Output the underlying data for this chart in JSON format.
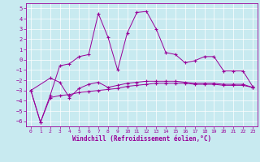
{
  "xlabel": "Windchill (Refroidissement éolien,°C)",
  "background_color": "#c8eaf0",
  "line_color": "#990099",
  "xlim": [
    -0.5,
    23.5
  ],
  "ylim": [
    -6.5,
    5.5
  ],
  "yticks": [
    -6,
    -5,
    -4,
    -3,
    -2,
    -1,
    0,
    1,
    2,
    3,
    4,
    5
  ],
  "xticks": [
    0,
    1,
    2,
    3,
    4,
    5,
    6,
    7,
    8,
    9,
    10,
    11,
    12,
    13,
    14,
    15,
    16,
    17,
    18,
    19,
    20,
    21,
    22,
    23
  ],
  "series1_x": [
    0,
    1,
    2,
    3,
    4,
    5,
    6,
    7,
    8,
    9,
    10,
    11,
    12,
    13,
    14,
    15,
    16,
    17,
    18,
    19,
    20,
    21,
    22,
    23
  ],
  "series1_y": [
    -3.0,
    -6.1,
    -3.5,
    -0.6,
    -0.4,
    0.3,
    0.5,
    4.5,
    2.2,
    -1.0,
    2.6,
    4.6,
    4.7,
    3.0,
    0.7,
    0.5,
    -0.3,
    -0.1,
    0.3,
    0.3,
    -1.1,
    -1.1,
    -1.1,
    -2.6
  ],
  "series2_x": [
    0,
    2,
    3,
    4,
    5,
    6,
    7,
    8,
    9,
    10,
    11,
    12,
    13,
    14,
    15,
    16,
    17,
    18,
    19,
    20,
    21,
    22,
    23
  ],
  "series2_y": [
    -3.0,
    -1.8,
    -2.2,
    -3.7,
    -2.8,
    -2.4,
    -2.2,
    -2.7,
    -2.5,
    -2.3,
    -2.2,
    -2.1,
    -2.1,
    -2.1,
    -2.1,
    -2.2,
    -2.3,
    -2.3,
    -2.3,
    -2.4,
    -2.4,
    -2.4,
    -2.7
  ],
  "series3_x": [
    0,
    1,
    2,
    3,
    4,
    5,
    6,
    7,
    8,
    9,
    10,
    11,
    12,
    13,
    14,
    15,
    16,
    17,
    18,
    19,
    20,
    21,
    22,
    23
  ],
  "series3_y": [
    -3.0,
    -6.1,
    -3.7,
    -3.5,
    -3.4,
    -3.2,
    -3.1,
    -3.0,
    -2.9,
    -2.8,
    -2.6,
    -2.5,
    -2.4,
    -2.3,
    -2.3,
    -2.3,
    -2.3,
    -2.4,
    -2.4,
    -2.4,
    -2.5,
    -2.5,
    -2.5,
    -2.7
  ]
}
